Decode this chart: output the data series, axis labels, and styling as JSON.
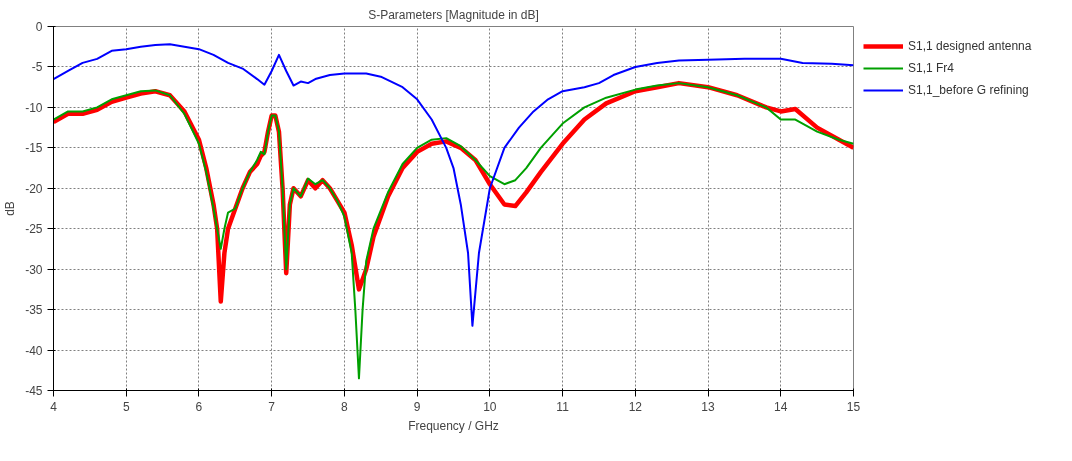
{
  "chart_data": {
    "type": "line",
    "title": "S-Parameters [Magnitude in dB]",
    "xlabel": "Frequency / GHz",
    "ylabel": "dB",
    "xlim": [
      4,
      15
    ],
    "xticks": [
      4,
      5,
      6,
      7,
      8,
      9,
      10,
      11,
      12,
      13,
      14,
      15
    ],
    "ylim": [
      -45,
      0
    ],
    "yticks": [
      -45,
      -40,
      -35,
      -30,
      -25,
      -20,
      -15,
      -10,
      -5,
      0
    ],
    "grid": true,
    "legend": "top right",
    "line_style": "solid",
    "marker": "none",
    "series": [
      {
        "name": "S1,1 designed antenna",
        "color": "#ff0000",
        "x": [
          4.0,
          4.2,
          4.4,
          4.6,
          4.8,
          5.0,
          5.2,
          5.4,
          5.6,
          5.8,
          6.0,
          6.1,
          6.2,
          6.25,
          6.3,
          6.35,
          6.4,
          6.5,
          6.6,
          6.7,
          6.8,
          6.85,
          6.9,
          6.95,
          7.0,
          7.05,
          7.1,
          7.15,
          7.2,
          7.25,
          7.3,
          7.4,
          7.5,
          7.6,
          7.7,
          7.8,
          7.9,
          8.0,
          8.1,
          8.2,
          8.3,
          8.4,
          8.6,
          8.8,
          9.0,
          9.2,
          9.4,
          9.6,
          9.8,
          10.0,
          10.2,
          10.35,
          10.5,
          10.7,
          11.0,
          11.3,
          11.6,
          12.0,
          12.3,
          12.6,
          13.0,
          13.4,
          13.8,
          14.0,
          14.2,
          14.5,
          14.8,
          15.0
        ],
        "values": [
          -11.8,
          -10.8,
          -10.8,
          -10.3,
          -9.3,
          -8.8,
          -8.3,
          -8,
          -8.5,
          -10.5,
          -14,
          -17.5,
          -22,
          -25,
          -34,
          -28,
          -25,
          -22.5,
          -20,
          -18,
          -17,
          -16,
          -15.5,
          -13,
          -11,
          -11,
          -13,
          -20,
          -30.5,
          -22,
          -20,
          -21,
          -19,
          -20,
          -19,
          -20,
          -21.5,
          -23,
          -27,
          -32.5,
          -30,
          -26,
          -21,
          -17.5,
          -15.5,
          -14.5,
          -14.2,
          -15,
          -16.5,
          -19.5,
          -22,
          -22.2,
          -20.5,
          -18,
          -14.5,
          -11.5,
          -9.5,
          -8,
          -7.5,
          -7,
          -7.5,
          -8.5,
          -10,
          -10.5,
          -10.2,
          -12.5,
          -14,
          -15
        ]
      },
      {
        "name": "S1,1 Fr4",
        "color": "#00a000",
        "x": [
          4.0,
          4.2,
          4.4,
          4.6,
          4.8,
          5.0,
          5.2,
          5.4,
          5.6,
          5.8,
          6.0,
          6.1,
          6.2,
          6.25,
          6.3,
          6.35,
          6.4,
          6.5,
          6.6,
          6.7,
          6.8,
          6.85,
          6.9,
          6.95,
          7.0,
          7.05,
          7.1,
          7.15,
          7.2,
          7.25,
          7.3,
          7.4,
          7.5,
          7.6,
          7.7,
          7.8,
          7.9,
          8.0,
          8.1,
          8.15,
          8.2,
          8.25,
          8.3,
          8.4,
          8.6,
          8.8,
          9.0,
          9.2,
          9.4,
          9.6,
          9.8,
          10.0,
          10.2,
          10.35,
          10.5,
          10.7,
          11.0,
          11.3,
          11.6,
          12.0,
          12.3,
          12.6,
          13.0,
          13.4,
          13.8,
          14.0,
          14.2,
          14.5,
          14.8,
          15.0
        ],
        "values": [
          -11.5,
          -10.5,
          -10.5,
          -10,
          -9,
          -8.5,
          -8,
          -7.9,
          -8.5,
          -10.8,
          -14.5,
          -18,
          -22.5,
          -25,
          -27.5,
          -25,
          -23,
          -22.5,
          -20,
          -18,
          -16.5,
          -15.5,
          -15.8,
          -13,
          -11,
          -11,
          -13,
          -20,
          -30,
          -22,
          -20,
          -21,
          -18.8,
          -19.5,
          -19,
          -20,
          -21.5,
          -23.5,
          -28,
          -35,
          -43.5,
          -35,
          -29,
          -25,
          -20.5,
          -17,
          -15,
          -14,
          -13.8,
          -14.8,
          -16.5,
          -18.5,
          -19.5,
          -19,
          -17.5,
          -15,
          -12,
          -10,
          -8.8,
          -7.8,
          -7.3,
          -7,
          -7.5,
          -8.5,
          -10,
          -11.5,
          -11.5,
          -13,
          -14,
          -14.5
        ]
      },
      {
        "name": "S1,1_before G refining",
        "color": "#0000ff",
        "x": [
          4.0,
          4.2,
          4.4,
          4.6,
          4.8,
          5.0,
          5.2,
          5.4,
          5.6,
          5.8,
          6.0,
          6.2,
          6.4,
          6.6,
          6.8,
          6.9,
          7.0,
          7.1,
          7.2,
          7.3,
          7.4,
          7.5,
          7.6,
          7.8,
          8.0,
          8.3,
          8.5,
          8.8,
          9.0,
          9.2,
          9.4,
          9.5,
          9.6,
          9.7,
          9.76,
          9.85,
          10.0,
          10.2,
          10.4,
          10.6,
          10.8,
          11.0,
          11.3,
          11.5,
          11.7,
          12.0,
          12.3,
          12.6,
          13.0,
          13.5,
          14.0,
          14.3,
          14.7,
          15.0
        ],
        "values": [
          -6.5,
          -5.5,
          -4.5,
          -4,
          -3,
          -2.8,
          -2.5,
          -2.3,
          -2.2,
          -2.5,
          -2.8,
          -3.5,
          -4.5,
          -5.2,
          -6.5,
          -7.2,
          -5.5,
          -3.5,
          -5.5,
          -7.3,
          -6.8,
          -7,
          -6.5,
          -6,
          -5.8,
          -5.8,
          -6.2,
          -7.5,
          -9,
          -11.5,
          -15,
          -17.5,
          -22,
          -28,
          -37,
          -28,
          -20,
          -15,
          -12.5,
          -10.5,
          -9,
          -8,
          -7.5,
          -7,
          -6,
          -5,
          -4.5,
          -4.2,
          -4.1,
          -4,
          -4,
          -4.5,
          -4.6,
          -4.8
        ]
      }
    ]
  }
}
